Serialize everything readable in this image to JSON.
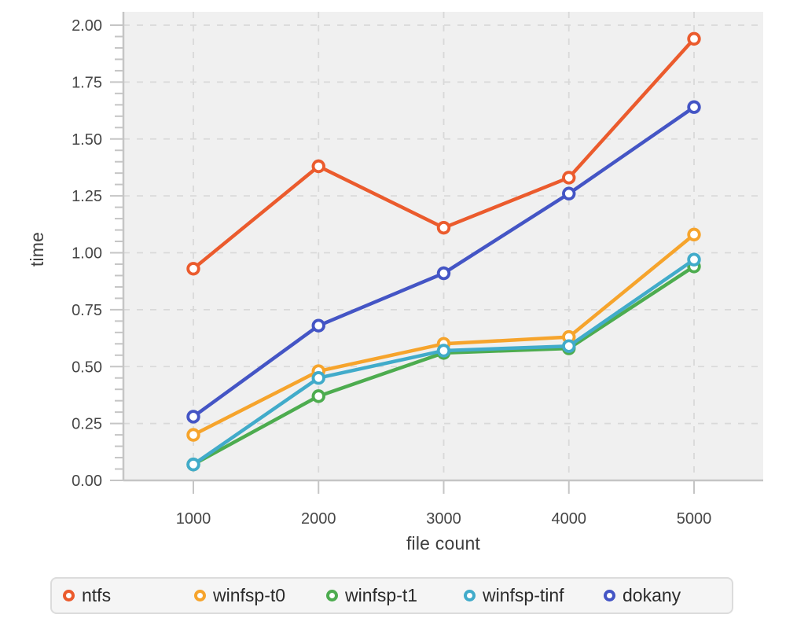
{
  "chart_data": {
    "type": "line",
    "title": "",
    "xlabel": "file count",
    "ylabel": "time",
    "x": [
      1000,
      2000,
      3000,
      4000,
      5000
    ],
    "x_ticks": [
      "1000",
      "2000",
      "3000",
      "4000",
      "5000"
    ],
    "y_ticks": [
      "0.00",
      "0.25",
      "0.50",
      "0.75",
      "1.00",
      "1.25",
      "1.50",
      "1.75",
      "2.00"
    ],
    "y_minor_step": 0.05,
    "xlim": [
      1000,
      5000
    ],
    "ylim": [
      0,
      2.0
    ],
    "grid": "dashed-major",
    "marker": "open-circle",
    "legend_position": "bottom",
    "panel_background": "#f0f0f0",
    "grid_color": "#d9d9d9",
    "axis_color": "#c5c5c5",
    "tick_label_color": "#464646",
    "series": [
      {
        "name": "ntfs",
        "color": "#EB5B2D",
        "values": [
          0.93,
          1.38,
          1.11,
          1.33,
          1.94
        ]
      },
      {
        "name": "winfsp-t0",
        "color": "#F6A42C",
        "values": [
          0.2,
          0.48,
          0.6,
          0.63,
          1.08
        ]
      },
      {
        "name": "winfsp-t1",
        "color": "#4DAC4F",
        "values": [
          0.07,
          0.37,
          0.56,
          0.58,
          0.94
        ]
      },
      {
        "name": "winfsp-tinf",
        "color": "#41ABCA",
        "values": [
          0.07,
          0.45,
          0.57,
          0.59,
          0.97
        ]
      },
      {
        "name": "dokany",
        "color": "#4455C5",
        "values": [
          0.28,
          0.68,
          0.91,
          1.26,
          1.64
        ]
      }
    ]
  }
}
